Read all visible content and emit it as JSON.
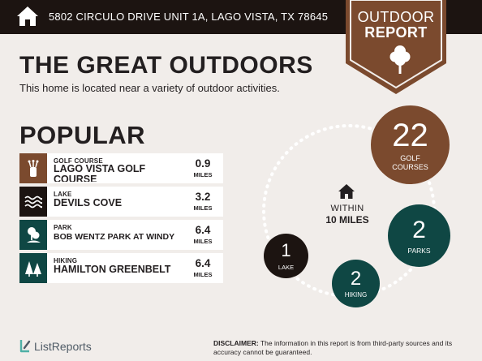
{
  "header": {
    "address": "5802 CIRCULO DRIVE UNIT 1A, LAGO VISTA, TX 78645",
    "home_icon": "house-icon"
  },
  "badge": {
    "line1": "OUTDOOR",
    "line2": "REPORT",
    "icon": "tree-icon"
  },
  "intro": {
    "title": "THE GREAT OUTDOORS",
    "subtitle": "This home is located near a variety of outdoor activities."
  },
  "popular": {
    "heading": "POPULAR",
    "items": [
      {
        "category": "GOLF COURSE",
        "name": "LAGO VISTA GOLF COURSE",
        "distance": "0.9",
        "unit": "MILES",
        "icon": "golf-bag-icon",
        "color": "#7b4a2e"
      },
      {
        "category": "LAKE",
        "name": "DEVILS COVE",
        "distance": "3.2",
        "unit": "MILES",
        "icon": "water-waves-icon",
        "color": "#1c1411"
      },
      {
        "category": "PARK",
        "name": "BOB WENTZ PARK AT WINDY POINT",
        "distance": "6.4",
        "unit": "MILES",
        "icon": "park-icon",
        "color": "#0f4744"
      },
      {
        "category": "HIKING",
        "name": "HAMILTON GREENBELT",
        "distance": "6.4",
        "unit": "MILES",
        "icon": "pine-trees-icon",
        "color": "#0f4744"
      }
    ]
  },
  "summary": {
    "within_line1": "WITHIN",
    "within_line2": "10 MILES",
    "golf": {
      "count": "22",
      "label_line1": "GOLF",
      "label_line2": "COURSES",
      "color": "#7b4a2e"
    },
    "parks": {
      "count": "2",
      "label": "PARKS",
      "color": "#0f4744"
    },
    "hiking": {
      "count": "2",
      "label": "HIKING",
      "color": "#0f4744"
    },
    "lake": {
      "count": "1",
      "label": "LAKE",
      "color": "#1c1411"
    }
  },
  "footer": {
    "brand": "ListReports",
    "disclaimer_label": "DISCLAIMER:",
    "disclaimer_text": "The information in this report is from third-party sources and its accuracy cannot be guaranteed."
  }
}
